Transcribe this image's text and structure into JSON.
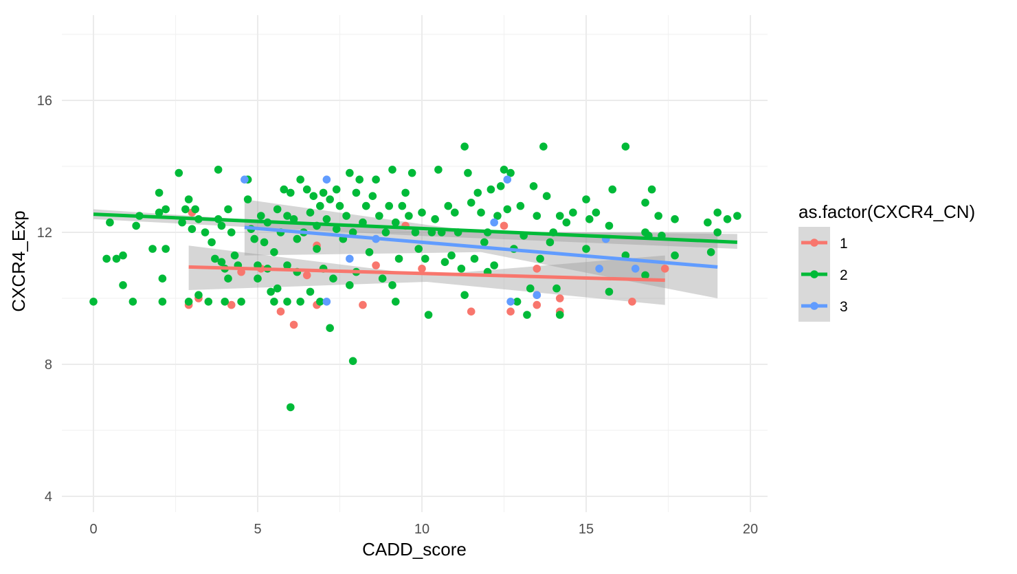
{
  "chart_data": {
    "type": "scatter",
    "xlabel": "CADD_score",
    "ylabel": "CXCR4_Exp",
    "xlim": [
      -1.0,
      20.5
    ],
    "ylim": [
      3.6,
      18.1
    ],
    "x_ticks": [
      0,
      5,
      10,
      15,
      20
    ],
    "y_ticks": [
      4,
      8,
      12,
      16
    ],
    "grid": true,
    "legend": {
      "title": "as.factor(CXCR4_CN)",
      "position": "right",
      "entries": [
        "1",
        "2",
        "3"
      ]
    },
    "series": [
      {
        "name": "1",
        "color": "#F8766D",
        "points": [
          [
            2.9,
            9.8
          ],
          [
            4.2,
            9.8
          ],
          [
            5.7,
            9.6
          ],
          [
            6.1,
            9.2
          ],
          [
            6.8,
            9.8
          ],
          [
            8.2,
            9.8
          ],
          [
            11.5,
            9.6
          ],
          [
            12.7,
            9.6
          ],
          [
            13.5,
            9.8
          ],
          [
            14.2,
            9.6
          ],
          [
            16.4,
            9.9
          ],
          [
            17.4,
            10.9
          ],
          [
            3.2,
            10.0
          ],
          [
            4.5,
            10.8
          ],
          [
            5.1,
            10.9
          ],
          [
            6.5,
            10.7
          ],
          [
            7.0,
            10.9
          ],
          [
            8.6,
            11.0
          ],
          [
            10.0,
            10.9
          ],
          [
            12.5,
            12.2
          ],
          [
            13.5,
            10.1
          ],
          [
            14.2,
            10.0
          ],
          [
            13.5,
            10.9
          ],
          [
            16.8,
            10.7
          ],
          [
            3.0,
            12.6
          ],
          [
            6.8,
            11.6
          ],
          [
            9.5,
            12.2
          ]
        ],
        "trend": {
          "x": [
            2.9,
            17.4
          ],
          "y": [
            10.95,
            10.55
          ]
        },
        "band": {
          "upper": [
            11.6,
            10.7,
            11.3
          ],
          "lower": [
            10.25,
            10.5,
            9.8
          ]
        }
      },
      {
        "name": "2",
        "color": "#00BA38",
        "points": [
          [
            0.0,
            9.9
          ],
          [
            0.4,
            11.2
          ],
          [
            0.5,
            12.3
          ],
          [
            0.7,
            11.2
          ],
          [
            0.9,
            11.3
          ],
          [
            0.9,
            10.4
          ],
          [
            1.2,
            9.9
          ],
          [
            1.3,
            12.2
          ],
          [
            1.4,
            12.5
          ],
          [
            1.8,
            11.5
          ],
          [
            2.0,
            13.2
          ],
          [
            2.0,
            12.6
          ],
          [
            2.1,
            10.6
          ],
          [
            2.1,
            9.9
          ],
          [
            2.2,
            12.7
          ],
          [
            2.2,
            11.5
          ],
          [
            2.6,
            13.8
          ],
          [
            2.7,
            12.3
          ],
          [
            2.8,
            12.7
          ],
          [
            2.9,
            13.0
          ],
          [
            2.9,
            9.9
          ],
          [
            3.0,
            12.1
          ],
          [
            3.1,
            12.7
          ],
          [
            3.2,
            12.4
          ],
          [
            3.2,
            10.1
          ],
          [
            3.4,
            12.0
          ],
          [
            3.5,
            9.9
          ],
          [
            3.6,
            11.7
          ],
          [
            3.7,
            11.2
          ],
          [
            3.8,
            13.9
          ],
          [
            3.8,
            12.4
          ],
          [
            3.9,
            12.2
          ],
          [
            3.9,
            11.1
          ],
          [
            4.0,
            10.9
          ],
          [
            4.0,
            9.9
          ],
          [
            4.1,
            12.7
          ],
          [
            4.1,
            10.6
          ],
          [
            4.2,
            12.0
          ],
          [
            4.3,
            11.3
          ],
          [
            4.4,
            11.0
          ],
          [
            4.5,
            9.9
          ],
          [
            4.7,
            13.6
          ],
          [
            4.7,
            13.0
          ],
          [
            4.8,
            12.1
          ],
          [
            4.9,
            11.8
          ],
          [
            5.0,
            11.0
          ],
          [
            5.0,
            10.6
          ],
          [
            5.1,
            12.5
          ],
          [
            5.2,
            11.7
          ],
          [
            5.3,
            12.3
          ],
          [
            5.3,
            10.9
          ],
          [
            5.4,
            10.2
          ],
          [
            5.5,
            11.4
          ],
          [
            5.5,
            9.9
          ],
          [
            5.6,
            12.7
          ],
          [
            5.6,
            10.3
          ],
          [
            5.7,
            12.0
          ],
          [
            5.8,
            13.3
          ],
          [
            5.9,
            12.5
          ],
          [
            5.9,
            11.0
          ],
          [
            5.9,
            9.9
          ],
          [
            6.0,
            13.2
          ],
          [
            6.0,
            6.7
          ],
          [
            6.1,
            12.4
          ],
          [
            6.2,
            11.8
          ],
          [
            6.2,
            10.8
          ],
          [
            6.3,
            13.6
          ],
          [
            6.3,
            9.9
          ],
          [
            6.4,
            12.0
          ],
          [
            6.5,
            13.3
          ],
          [
            6.6,
            12.6
          ],
          [
            6.6,
            10.2
          ],
          [
            6.7,
            13.1
          ],
          [
            6.8,
            12.2
          ],
          [
            6.8,
            11.5
          ],
          [
            6.9,
            12.8
          ],
          [
            6.9,
            9.9
          ],
          [
            7.0,
            13.2
          ],
          [
            7.0,
            10.9
          ],
          [
            7.1,
            12.4
          ],
          [
            7.2,
            13.0
          ],
          [
            7.2,
            9.1
          ],
          [
            7.3,
            10.6
          ],
          [
            7.4,
            13.3
          ],
          [
            7.4,
            12.1
          ],
          [
            7.5,
            12.8
          ],
          [
            7.6,
            11.8
          ],
          [
            7.7,
            12.5
          ],
          [
            7.8,
            13.8
          ],
          [
            7.8,
            10.4
          ],
          [
            7.9,
            8.1
          ],
          [
            7.9,
            12.0
          ],
          [
            8.0,
            13.2
          ],
          [
            8.0,
            10.8
          ],
          [
            8.1,
            13.6
          ],
          [
            8.2,
            12.3
          ],
          [
            8.3,
            12.8
          ],
          [
            8.4,
            11.4
          ],
          [
            8.5,
            13.1
          ],
          [
            8.6,
            13.6
          ],
          [
            8.7,
            12.5
          ],
          [
            8.8,
            10.6
          ],
          [
            8.9,
            12.0
          ],
          [
            9.0,
            12.8
          ],
          [
            9.1,
            13.9
          ],
          [
            9.1,
            10.4
          ],
          [
            9.2,
            12.3
          ],
          [
            9.2,
            9.9
          ],
          [
            9.3,
            11.2
          ],
          [
            9.4,
            12.8
          ],
          [
            9.5,
            13.2
          ],
          [
            9.6,
            12.5
          ],
          [
            9.7,
            13.8
          ],
          [
            9.8,
            12.0
          ],
          [
            9.9,
            11.5
          ],
          [
            10.0,
            12.6
          ],
          [
            10.1,
            11.2
          ],
          [
            10.2,
            9.5
          ],
          [
            10.3,
            12.0
          ],
          [
            10.4,
            12.4
          ],
          [
            10.5,
            13.9
          ],
          [
            10.6,
            12.0
          ],
          [
            10.7,
            11.1
          ],
          [
            10.8,
            12.8
          ],
          [
            10.9,
            11.3
          ],
          [
            11.0,
            12.6
          ],
          [
            11.1,
            12.0
          ],
          [
            11.2,
            10.9
          ],
          [
            11.3,
            14.6
          ],
          [
            11.3,
            10.1
          ],
          [
            11.4,
            13.8
          ],
          [
            11.5,
            12.9
          ],
          [
            11.6,
            11.2
          ],
          [
            11.7,
            13.2
          ],
          [
            11.8,
            12.6
          ],
          [
            11.9,
            11.7
          ],
          [
            12.0,
            12.0
          ],
          [
            12.1,
            13.3
          ],
          [
            12.2,
            11.0
          ],
          [
            12.3,
            12.5
          ],
          [
            12.4,
            13.4
          ],
          [
            12.5,
            13.9
          ],
          [
            12.6,
            12.7
          ],
          [
            12.7,
            13.8
          ],
          [
            12.8,
            11.5
          ],
          [
            12.9,
            9.9
          ],
          [
            13.0,
            12.8
          ],
          [
            13.1,
            11.9
          ],
          [
            13.2,
            9.5
          ],
          [
            13.3,
            10.3
          ],
          [
            13.4,
            13.4
          ],
          [
            13.5,
            12.5
          ],
          [
            13.6,
            11.2
          ],
          [
            13.7,
            14.6
          ],
          [
            13.8,
            13.1
          ],
          [
            13.9,
            11.7
          ],
          [
            14.0,
            12.0
          ],
          [
            14.1,
            10.3
          ],
          [
            14.2,
            12.5
          ],
          [
            14.2,
            9.5
          ],
          [
            14.4,
            12.3
          ],
          [
            14.6,
            12.6
          ],
          [
            15.0,
            13.0
          ],
          [
            15.0,
            11.5
          ],
          [
            15.1,
            12.4
          ],
          [
            15.3,
            12.6
          ],
          [
            15.7,
            12.2
          ],
          [
            15.7,
            10.2
          ],
          [
            15.8,
            13.3
          ],
          [
            16.2,
            14.6
          ],
          [
            16.2,
            11.3
          ],
          [
            16.8,
            12.9
          ],
          [
            16.8,
            12.0
          ],
          [
            16.9,
            11.9
          ],
          [
            17.0,
            13.3
          ],
          [
            17.2,
            12.5
          ],
          [
            17.3,
            11.9
          ],
          [
            17.7,
            12.4
          ],
          [
            17.7,
            11.3
          ],
          [
            18.7,
            12.3
          ],
          [
            18.8,
            11.4
          ],
          [
            19.0,
            12.6
          ],
          [
            19.0,
            12.0
          ],
          [
            19.3,
            12.4
          ],
          [
            19.6,
            12.5
          ],
          [
            16.8,
            10.7
          ],
          [
            12.0,
            10.8
          ]
        ],
        "trend": {
          "x": [
            0.0,
            19.6
          ],
          "y": [
            12.55,
            11.7
          ]
        },
        "band": {
          "upper": [
            12.7,
            12.05,
            11.95
          ],
          "lower": [
            12.4,
            11.9,
            11.5
          ]
        }
      },
      {
        "name": "3",
        "color": "#619CFF",
        "points": [
          [
            4.6,
            13.6
          ],
          [
            7.1,
            13.6
          ],
          [
            7.1,
            9.9
          ],
          [
            7.8,
            11.2
          ],
          [
            8.6,
            11.8
          ],
          [
            12.2,
            12.3
          ],
          [
            12.6,
            13.6
          ],
          [
            12.7,
            9.9
          ],
          [
            15.4,
            10.9
          ],
          [
            15.6,
            11.8
          ],
          [
            16.5,
            10.9
          ],
          [
            13.5,
            10.1
          ]
        ],
        "trend": {
          "x": [
            4.6,
            19.0
          ],
          "y": [
            12.15,
            10.95
          ]
        },
        "band": {
          "upper": [
            13.0,
            12.0,
            12.0
          ],
          "lower": [
            11.3,
            11.4,
            10.0
          ]
        }
      }
    ]
  }
}
